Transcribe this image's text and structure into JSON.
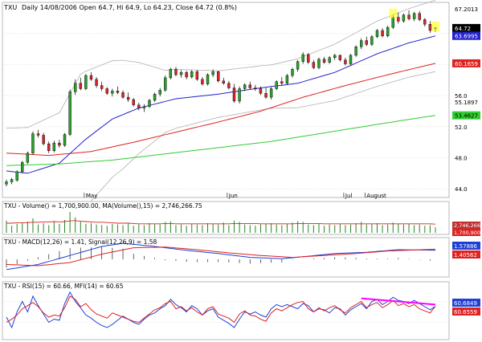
{
  "header": {
    "symbol": "TXU",
    "text": "Daily 14/08/2006 Open 64.7, Hi 64.9, Lo 64.23, Close 64.72 (0.8%)"
  },
  "colors": {
    "up_candle": "#2ca02c",
    "down_candle": "#d62728",
    "ma_short": "#2222cc",
    "ma_mid": "#dd2222",
    "ma_long": "#33cc33",
    "bollinger": "#b0b0b0",
    "volume_bars": "#228822",
    "macd": "#1f3fd6",
    "signal": "#dd2222",
    "histogram": "#222222",
    "rsi": "#dd2222",
    "mfi": "#1f3fd6",
    "trendline": "#ff00ff",
    "grid": "#cccccc"
  },
  "price_panel": {
    "axis_labels": [
      "67.2013",
      "64.72",
      "63.6995",
      "60.1659",
      "56.0",
      "55.1897",
      "53.4627",
      "52.0",
      "48.0",
      "44.0"
    ],
    "badges": [
      {
        "text": "64.72",
        "bg": "#000000",
        "fg": "#ffffff"
      },
      {
        "text": "63.6995",
        "bg": "#2222cc",
        "fg": "#ffffff"
      },
      {
        "text": "60.1659",
        "bg": "#dd2222",
        "fg": "#ffffff"
      },
      {
        "text": "53.4627",
        "bg": "#33cc33",
        "fg": "#000000"
      }
    ],
    "x_labels": [
      "May",
      "Jun",
      "Jul",
      "August"
    ]
  },
  "volume_panel": {
    "label": "TXU - Volume() = 1,700,900.00, MA(Volume(),15) = 2,746,266.75",
    "badges": [
      "2,746,266",
      "1,700,900"
    ]
  },
  "macd_panel": {
    "label": "TXU - MACD(12,26) = 1.41, Signal(12,26,9) = 1.58",
    "badges": [
      "1.57886",
      "1.40562"
    ]
  },
  "rsi_panel": {
    "label": "TXU - RSI(15) = 60.66, MFI(14) = 60.65",
    "badges": [
      "60.6849",
      "60.6559"
    ]
  },
  "chart_data": {
    "type": "line",
    "title": "TXU Daily 14/08/2006",
    "ylim": [
      43.5,
      67.5
    ],
    "x_ticks": [
      "May",
      "Jun",
      "Jul",
      "August"
    ],
    "ohlc": [
      [
        44.6,
        45.2,
        44.3,
        44.9
      ],
      [
        44.9,
        45.4,
        44.6,
        45.2
      ],
      [
        45.1,
        46.4,
        44.9,
        46.2
      ],
      [
        46.2,
        47.6,
        46.0,
        47.4
      ],
      [
        47.4,
        48.8,
        47.2,
        48.6
      ],
      [
        48.6,
        51.4,
        48.4,
        51.1
      ],
      [
        51.1,
        51.6,
        50.6,
        50.9
      ],
      [
        50.9,
        51.2,
        49.6,
        49.8
      ],
      [
        49.8,
        50.1,
        48.6,
        48.9
      ],
      [
        48.9,
        50.2,
        48.7,
        49.9
      ],
      [
        49.9,
        50.3,
        49.3,
        49.6
      ],
      [
        49.6,
        51.2,
        49.4,
        51.0
      ],
      [
        51.0,
        56.8,
        50.8,
        56.5
      ],
      [
        56.5,
        58.1,
        56.1,
        57.6
      ],
      [
        57.6,
        58.3,
        56.7,
        56.9
      ],
      [
        56.9,
        58.8,
        56.7,
        58.6
      ],
      [
        58.6,
        59.0,
        57.9,
        58.1
      ],
      [
        58.1,
        58.4,
        57.0,
        57.3
      ],
      [
        57.3,
        57.8,
        56.6,
        56.9
      ],
      [
        56.9,
        57.1,
        56.1,
        56.3
      ],
      [
        56.3,
        56.9,
        55.9,
        56.6
      ],
      [
        56.6,
        57.2,
        56.2,
        56.4
      ],
      [
        56.4,
        56.7,
        55.6,
        55.8
      ],
      [
        55.8,
        56.4,
        55.2,
        55.5
      ],
      [
        55.5,
        55.7,
        54.6,
        54.8
      ],
      [
        54.8,
        55.1,
        54.1,
        54.4
      ],
      [
        54.4,
        54.9,
        53.9,
        54.6
      ],
      [
        54.6,
        55.6,
        54.4,
        55.4
      ],
      [
        55.4,
        56.4,
        55.2,
        56.2
      ],
      [
        56.2,
        57.0,
        55.9,
        56.7
      ],
      [
        56.7,
        58.6,
        56.5,
        58.3
      ],
      [
        58.3,
        59.6,
        58.1,
        59.4
      ],
      [
        59.4,
        59.7,
        58.5,
        58.7
      ],
      [
        58.7,
        59.3,
        58.3,
        59.0
      ],
      [
        59.0,
        59.2,
        58.1,
        58.4
      ],
      [
        58.4,
        59.3,
        58.2,
        59.1
      ],
      [
        59.1,
        59.3,
        57.9,
        58.1
      ],
      [
        58.1,
        58.4,
        57.3,
        57.5
      ],
      [
        57.5,
        58.9,
        57.3,
        58.7
      ],
      [
        58.7,
        59.4,
        58.4,
        59.1
      ],
      [
        59.1,
        59.2,
        57.7,
        57.9
      ],
      [
        57.9,
        58.3,
        57.4,
        57.6
      ],
      [
        57.6,
        57.9,
        56.8,
        57.0
      ],
      [
        57.0,
        57.5,
        55.1,
        55.3
      ],
      [
        55.3,
        57.2,
        55.0,
        56.9
      ],
      [
        56.9,
        57.6,
        56.6,
        57.4
      ],
      [
        57.4,
        57.8,
        56.8,
        57.0
      ],
      [
        57.0,
        57.4,
        56.6,
        56.9
      ],
      [
        56.9,
        57.2,
        56.1,
        56.3
      ],
      [
        56.3,
        57.0,
        55.6,
        55.8
      ],
      [
        55.8,
        57.1,
        55.5,
        56.9
      ],
      [
        56.9,
        58.0,
        56.7,
        57.8
      ],
      [
        57.8,
        58.4,
        57.3,
        57.6
      ],
      [
        57.6,
        58.8,
        57.4,
        58.6
      ],
      [
        58.6,
        59.6,
        58.3,
        59.4
      ],
      [
        59.4,
        60.6,
        59.1,
        60.4
      ],
      [
        60.4,
        61.6,
        60.1,
        61.3
      ],
      [
        61.3,
        61.5,
        60.1,
        60.3
      ],
      [
        60.3,
        60.6,
        59.4,
        59.6
      ],
      [
        59.6,
        60.9,
        59.4,
        60.7
      ],
      [
        60.7,
        61.0,
        60.1,
        60.3
      ],
      [
        60.3,
        61.1,
        60.1,
        60.9
      ],
      [
        60.9,
        61.4,
        60.6,
        61.2
      ],
      [
        61.2,
        61.3,
        60.4,
        60.6
      ],
      [
        60.6,
        60.9,
        59.9,
        60.1
      ],
      [
        60.1,
        61.4,
        59.9,
        61.2
      ],
      [
        61.2,
        62.5,
        61.0,
        62.3
      ],
      [
        62.3,
        63.4,
        62.0,
        63.1
      ],
      [
        63.1,
        63.6,
        62.4,
        62.6
      ],
      [
        62.6,
        63.8,
        62.4,
        63.6
      ],
      [
        63.6,
        64.6,
        63.4,
        64.4
      ],
      [
        64.4,
        64.7,
        63.5,
        63.7
      ],
      [
        63.7,
        65.0,
        63.5,
        64.8
      ],
      [
        64.8,
        66.4,
        64.6,
        66.1
      ],
      [
        66.1,
        66.7,
        65.3,
        65.6
      ],
      [
        65.6,
        66.6,
        65.4,
        66.4
      ],
      [
        66.4,
        67.0,
        65.7,
        65.9
      ],
      [
        65.9,
        66.8,
        65.6,
        66.6
      ],
      [
        66.6,
        66.9,
        65.6,
        65.8
      ],
      [
        65.8,
        66.0,
        64.9,
        65.2
      ],
      [
        65.2,
        65.6,
        64.1,
        64.4
      ],
      [
        64.7,
        64.9,
        64.23,
        64.72
      ]
    ],
    "series": [
      {
        "name": "",
        "anchors": [
          [
            0,
            46.3
          ],
          [
            4,
            46.0
          ],
          [
            10,
            47.3
          ],
          [
            15,
            50.4
          ],
          [
            20,
            53.0
          ],
          [
            25,
            54.4
          ],
          [
            32,
            55.6
          ],
          [
            40,
            56.2
          ],
          [
            48,
            57.0
          ],
          [
            55,
            57.6
          ],
          [
            62,
            59.0
          ],
          [
            70,
            61.4
          ],
          [
            76,
            62.8
          ],
          [
            81,
            63.6995
          ]
        ]
      },
      {
        "name": "",
        "anchors": [
          [
            0,
            48.6
          ],
          [
            8,
            48.3
          ],
          [
            16,
            48.8
          ],
          [
            24,
            50.0
          ],
          [
            32,
            51.3
          ],
          [
            40,
            52.6
          ],
          [
            48,
            54.0
          ],
          [
            56,
            55.8
          ],
          [
            64,
            57.3
          ],
          [
            72,
            58.7
          ],
          [
            81,
            60.1659
          ]
        ]
      },
      {
        "name": "",
        "anchors": [
          [
            0,
            47.0
          ],
          [
            10,
            47.2
          ],
          [
            20,
            47.7
          ],
          [
            30,
            48.5
          ],
          [
            40,
            49.3
          ],
          [
            50,
            50.1
          ],
          [
            60,
            51.2
          ],
          [
            70,
            52.3
          ],
          [
            81,
            53.4627
          ]
        ]
      }
    ],
    "volume": [
      38,
      22,
      28,
      30,
      35,
      45,
      26,
      30,
      24,
      36,
      28,
      40,
      65,
      48,
      36,
      28,
      30,
      26,
      24,
      22,
      28,
      26,
      24,
      30,
      22,
      26,
      24,
      30,
      28,
      26,
      34,
      36,
      24,
      26,
      22,
      28,
      26,
      24,
      30,
      28,
      26,
      32,
      24,
      38,
      34,
      26,
      24,
      22,
      26,
      28,
      30,
      26,
      24,
      28,
      32,
      36,
      34,
      26,
      24,
      28,
      22,
      26,
      24,
      28,
      24,
      26,
      30,
      34,
      26,
      28,
      30,
      24,
      26,
      32,
      28,
      26,
      28,
      24,
      26,
      22,
      24,
      17
    ],
    "volume_ma": [
      30,
      30,
      31,
      31,
      32,
      33,
      33,
      34,
      34,
      35,
      34,
      35,
      37,
      38,
      36,
      35,
      34,
      33,
      33,
      32,
      31,
      30,
      30,
      30,
      29,
      28,
      28,
      28,
      28,
      28,
      29,
      29,
      28,
      28,
      28,
      28,
      28,
      28,
      28,
      28,
      28,
      28,
      28,
      29,
      29,
      29,
      29,
      29,
      28,
      28,
      28,
      28,
      28,
      28,
      28,
      29,
      29,
      29,
      29,
      29,
      28,
      28,
      28,
      28,
      28,
      28,
      28,
      28,
      28,
      28,
      28,
      28,
      28,
      28,
      28,
      28,
      28,
      28,
      28,
      28,
      28,
      27
    ],
    "macd_anchors": [
      [
        0,
        -1.6
      ],
      [
        6,
        -0.8
      ],
      [
        12,
        0.6
      ],
      [
        18,
        2.0
      ],
      [
        22,
        2.5
      ],
      [
        28,
        2.0
      ],
      [
        34,
        1.4
      ],
      [
        40,
        0.9
      ],
      [
        46,
        0.3
      ],
      [
        52,
        0.1
      ],
      [
        56,
        0.4
      ],
      [
        62,
        0.9
      ],
      [
        68,
        1.1
      ],
      [
        74,
        1.5
      ],
      [
        81,
        1.41
      ]
    ],
    "signal_anchors": [
      [
        0,
        -0.8
      ],
      [
        6,
        -1.0
      ],
      [
        12,
        -0.5
      ],
      [
        18,
        0.8
      ],
      [
        24,
        1.8
      ],
      [
        30,
        1.9
      ],
      [
        36,
        1.5
      ],
      [
        42,
        1.0
      ],
      [
        48,
        0.6
      ],
      [
        54,
        0.3
      ],
      [
        60,
        0.6
      ],
      [
        66,
        0.9
      ],
      [
        72,
        1.3
      ],
      [
        81,
        1.58
      ]
    ],
    "macd_range": [
      -2.5,
      3.0
    ],
    "rsi": [
      30,
      36,
      44,
      56,
      62,
      68,
      60,
      48,
      40,
      44,
      42,
      58,
      80,
      74,
      60,
      66,
      54,
      46,
      42,
      38,
      48,
      44,
      40,
      36,
      32,
      30,
      38,
      46,
      54,
      58,
      66,
      70,
      56,
      60,
      52,
      58,
      50,
      44,
      56,
      60,
      46,
      42,
      38,
      30,
      46,
      52,
      44,
      42,
      36,
      32,
      48,
      56,
      52,
      58,
      64,
      68,
      70,
      56,
      50,
      58,
      52,
      58,
      62,
      54,
      48,
      58,
      64,
      70,
      58,
      64,
      68,
      58,
      64,
      72,
      62,
      66,
      60,
      64,
      56,
      52,
      48,
      60.66
    ],
    "mfi": [
      40,
      20,
      50,
      70,
      50,
      80,
      62,
      46,
      30,
      36,
      34,
      66,
      88,
      70,
      58,
      44,
      38,
      30,
      24,
      20,
      26,
      34,
      42,
      36,
      30,
      26,
      36,
      44,
      48,
      56,
      62,
      74,
      64,
      58,
      50,
      62,
      56,
      44,
      52,
      56,
      40,
      34,
      28,
      20,
      36,
      50,
      46,
      50,
      44,
      40,
      56,
      64,
      60,
      64,
      60,
      56,
      66,
      62,
      50,
      56,
      54,
      48,
      58,
      56,
      44,
      54,
      60,
      66,
      56,
      70,
      74,
      64,
      70,
      78,
      72,
      70,
      66,
      72,
      66,
      60,
      54,
      60.65
    ],
    "trendline": [
      [
        67,
        76
      ],
      [
        81,
        64
      ]
    ]
  }
}
